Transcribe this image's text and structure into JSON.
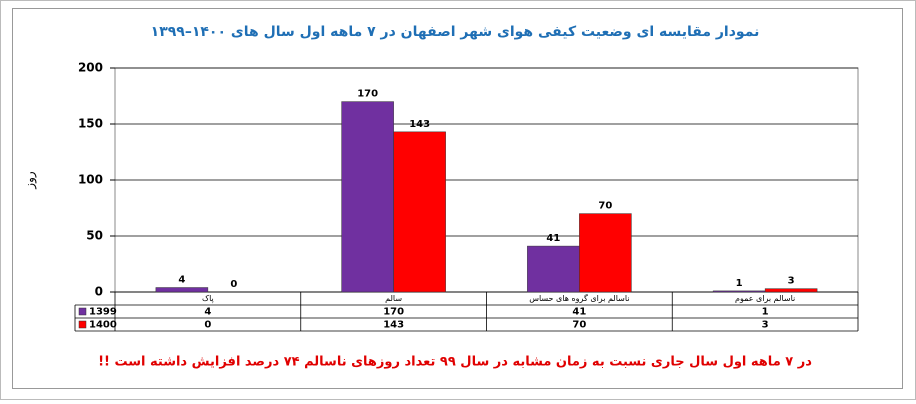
{
  "chart_data": {
    "type": "bar",
    "title": "نمودار مقایسه ای  وضعیت کیفی هوای شهر اصفهان در  ۷  ماهه اول سال های ۱۴۰۰–۱۳۹۹",
    "y_label": "روز",
    "categories": [
      "پاک",
      "سالم",
      "ناسالم برای گروه های حساس",
      "ناسالم برای عموم"
    ],
    "series": [
      {
        "name": "1399",
        "color": "#7030a0",
        "values": [
          4,
          170,
          41,
          1
        ]
      },
      {
        "name": "1400",
        "color": "#ff0000",
        "values": [
          0,
          143,
          70,
          3
        ]
      }
    ],
    "ylim": [
      0,
      200
    ],
    "yticks": [
      0,
      50,
      100,
      150,
      200
    ],
    "grid": true,
    "note": "در ۷ ماهه اول سال جاری نسبت به زمان مشابه در سال ۹۹ تعداد روزهای ناسالم ۷۴ درصد افزایش داشته است !!"
  }
}
